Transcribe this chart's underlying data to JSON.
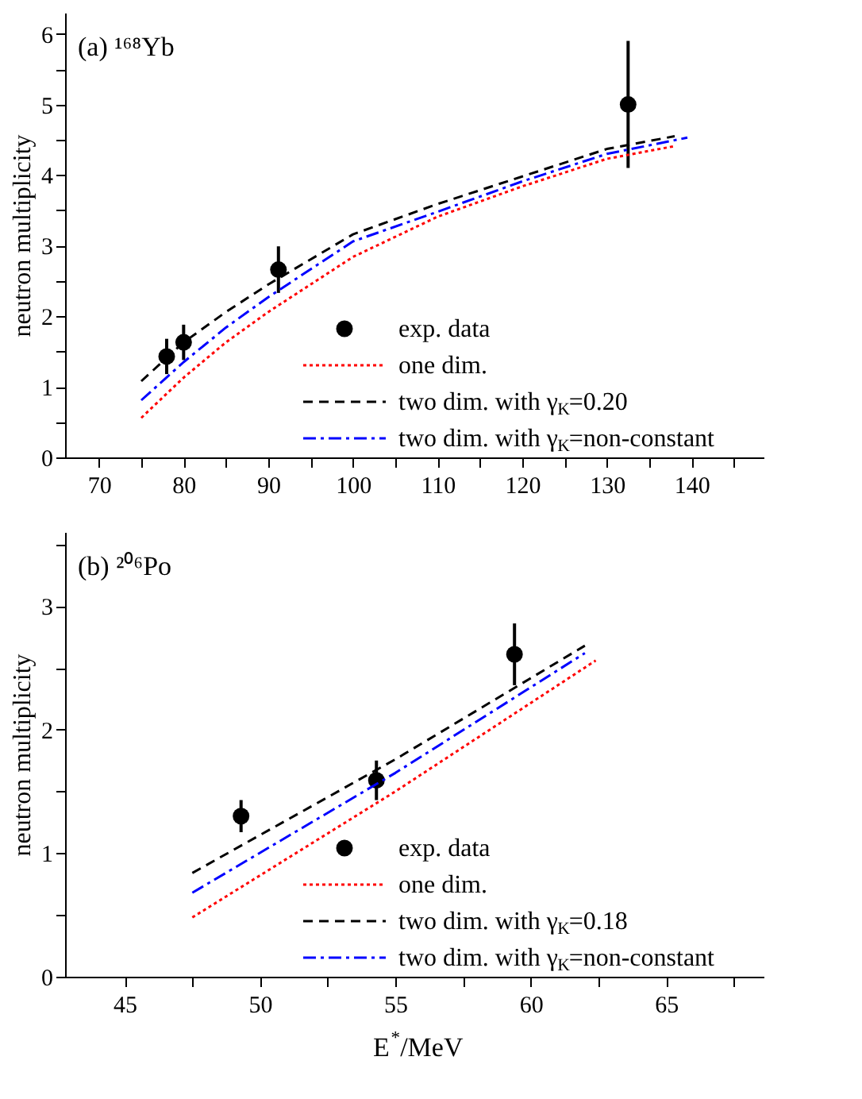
{
  "chart_data": [
    {
      "type": "line",
      "ylabel": "neutron multiplicity",
      "annotations": [
        "(a) ¹⁶⁸Yb"
      ],
      "legend": "bottom right",
      "grid": false,
      "xlim": [
        66,
        148.5
      ],
      "ylim": [
        0,
        6.3
      ],
      "xticks": [
        70,
        {
          "value": 75,
          "label": null
        },
        80,
        {
          "value": 85,
          "label": null
        },
        90,
        {
          "value": 95,
          "label": null
        },
        100,
        {
          "value": 105,
          "label": null
        },
        110,
        {
          "value": 115,
          "label": null
        },
        120,
        {
          "value": 125,
          "label": null
        },
        130,
        {
          "value": 135,
          "label": null
        },
        140,
        {
          "value": 145,
          "label": null
        }
      ],
      "yticks": [
        0,
        {
          "value": 0.5,
          "label": null
        },
        1,
        {
          "value": 1.5,
          "label": null
        },
        2,
        {
          "value": 2.5,
          "label": null
        },
        3,
        {
          "value": 3.5,
          "label": null
        },
        4,
        {
          "value": 4.5,
          "label": null
        },
        5,
        {
          "value": 5.5,
          "label": null
        },
        6
      ],
      "series": [
        {
          "name": "exp. data",
          "type": "scatter",
          "marker": "circle",
          "color": "#000000",
          "x": [
            78,
            80,
            91.2,
            132.5
          ],
          "values": [
            1.43,
            1.63,
            2.66,
            5.0
          ],
          "errors": [
            0.25,
            0.25,
            0.33,
            0.9
          ]
        },
        {
          "name": "one dim.",
          "line_style": "dotted",
          "color": "#ff0000",
          "x": [
            75,
            80,
            85,
            90,
            100,
            110,
            120,
            130,
            138
          ],
          "values": [
            0.56,
            1.13,
            1.63,
            2.06,
            2.84,
            3.41,
            3.84,
            4.23,
            4.41
          ]
        },
        {
          "name": "two dim. with γ$_{K}$=0.20",
          "line_style": "dashed",
          "color": "#000000",
          "x": [
            75,
            80,
            85,
            90,
            100,
            110,
            120,
            130,
            138
          ],
          "values": [
            1.08,
            1.63,
            2.06,
            2.45,
            3.16,
            3.59,
            3.98,
            4.37,
            4.55
          ]
        },
        {
          "name": "two dim. with γ$_{K}$=non-constant",
          "line_style": "dashdot",
          "color": "#0000ff",
          "x": [
            75,
            80,
            85,
            90,
            100,
            110,
            120,
            130,
            139.5
          ],
          "values": [
            0.81,
            1.35,
            1.84,
            2.27,
            3.06,
            3.48,
            3.91,
            4.3,
            4.53
          ]
        }
      ]
    },
    {
      "type": "line",
      "xlabel": "E$^{*}$/MeV",
      "ylabel": "neutron multiplicity",
      "annotations": [
        "(b) ²⁰⁶Po"
      ],
      "legend": "bottom right",
      "grid": false,
      "xlim": [
        42.8,
        68.6
      ],
      "ylim": [
        0,
        3.6
      ],
      "xticks": [
        45,
        {
          "value": 47.5,
          "label": null
        },
        50,
        {
          "value": 52.5,
          "label": null
        },
        55,
        {
          "value": 57.5,
          "label": null
        },
        60,
        {
          "value": 62.5,
          "label": null
        },
        65,
        {
          "value": 67.5,
          "label": null
        }
      ],
      "yticks": [
        0,
        {
          "value": 0.5,
          "label": null
        },
        1,
        {
          "value": 1.5,
          "label": null
        },
        2,
        {
          "value": 2.5,
          "label": null
        },
        3,
        {
          "value": 3.5,
          "label": null
        }
      ],
      "series": [
        {
          "name": "exp. data",
          "type": "scatter",
          "marker": "circle",
          "color": "#000000",
          "x": [
            49.3,
            54.3,
            59.4
          ],
          "values": [
            1.3,
            1.59,
            2.61
          ],
          "errors": [
            0.13,
            0.16,
            0.25
          ]
        },
        {
          "name": "one dim.",
          "line_style": "dotted",
          "color": "#ff0000",
          "x": [
            47.5,
            55,
            62.4
          ],
          "values": [
            0.48,
            1.5,
            2.56
          ]
        },
        {
          "name": "two dim. with γ$_{K}$=0.18",
          "line_style": "dashed",
          "color": "#000000",
          "x": [
            47.5,
            55,
            62
          ],
          "values": [
            0.84,
            1.76,
            2.68
          ]
        },
        {
          "name": "two dim. with γ$_{K}$=non-constant",
          "line_style": "dashdot",
          "color": "#0000ff",
          "x": [
            47.5,
            55,
            62
          ],
          "values": [
            0.68,
            1.65,
            2.62
          ]
        }
      ]
    }
  ]
}
